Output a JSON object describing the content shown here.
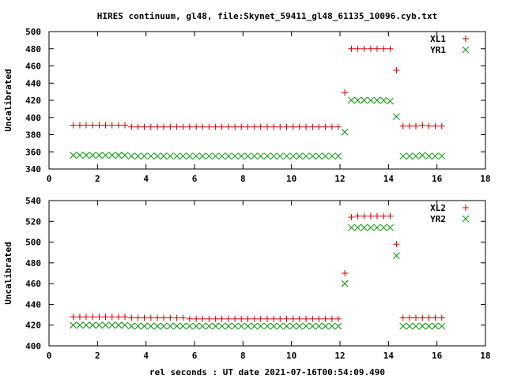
{
  "chart_data": [
    {
      "type": "scatter",
      "title": "HIRES continuum, gl48, file:Skynet_59411_gl48_61135_10096.cyb.txt",
      "ylabel": "Uncalibrated",
      "xlabel": "",
      "xlim": [
        0,
        18
      ],
      "ylim": [
        340,
        500
      ],
      "xticks": [
        0,
        2,
        4,
        6,
        8,
        10,
        12,
        14,
        16,
        18
      ],
      "yticks": [
        340,
        360,
        380,
        400,
        420,
        440,
        460,
        480,
        500
      ],
      "legend_position": "top-right",
      "grid": false,
      "x": [
        1.0,
        1.27,
        1.53,
        1.8,
        2.07,
        2.33,
        2.6,
        2.87,
        3.13,
        3.4,
        3.67,
        3.93,
        4.2,
        4.47,
        4.73,
        5.0,
        5.27,
        5.53,
        5.8,
        6.07,
        6.33,
        6.6,
        6.87,
        7.13,
        7.4,
        7.67,
        7.93,
        8.2,
        8.47,
        8.73,
        9.0,
        9.27,
        9.53,
        9.8,
        10.07,
        10.33,
        10.6,
        10.87,
        11.13,
        11.4,
        11.67,
        11.93,
        12.2,
        12.47,
        12.73,
        13.0,
        13.27,
        13.53,
        13.8,
        14.07,
        14.33,
        14.6,
        14.87,
        15.13,
        15.4,
        15.67,
        15.93,
        16.2
      ],
      "series": [
        {
          "name": "XL1",
          "marker": "plus",
          "color": "#cc0000",
          "values": [
            391,
            391,
            391,
            391,
            391,
            391,
            391,
            391,
            391,
            389,
            389,
            389,
            389,
            389,
            389,
            389,
            389,
            389,
            389,
            389,
            389,
            389,
            389,
            389,
            389,
            389,
            389,
            389,
            389,
            389,
            389,
            389,
            389,
            389,
            389,
            389,
            389,
            389,
            389,
            389,
            389,
            389,
            429,
            480,
            480,
            480,
            480,
            480,
            480,
            480,
            455,
            390,
            390,
            390,
            391,
            390,
            390,
            390
          ]
        },
        {
          "name": "YR1",
          "marker": "x",
          "color": "#009900",
          "values": [
            356,
            356,
            356,
            356,
            356,
            356,
            356,
            356,
            356,
            355,
            355,
            355,
            355,
            355,
            355,
            355,
            355,
            355,
            355,
            355,
            355,
            355,
            355,
            355,
            355,
            355,
            355,
            355,
            355,
            355,
            355,
            355,
            355,
            355,
            355,
            355,
            355,
            355,
            355,
            355,
            355,
            355,
            383,
            420,
            420,
            420,
            420,
            420,
            420,
            419,
            401,
            355,
            355,
            355,
            356,
            355,
            355,
            355
          ]
        }
      ]
    },
    {
      "type": "scatter",
      "title": "",
      "ylabel": "Uncalibrated",
      "xlabel": "rel seconds : UT date 2021-07-16T00:54:09.490",
      "xlim": [
        0,
        18
      ],
      "ylim": [
        400,
        540
      ],
      "xticks": [
        0,
        2,
        4,
        6,
        8,
        10,
        12,
        14,
        16,
        18
      ],
      "yticks": [
        400,
        420,
        440,
        460,
        480,
        500,
        520,
        540
      ],
      "legend_position": "top-right",
      "grid": false,
      "x": [
        1.0,
        1.27,
        1.53,
        1.8,
        2.07,
        2.33,
        2.6,
        2.87,
        3.13,
        3.4,
        3.67,
        3.93,
        4.2,
        4.47,
        4.73,
        5.0,
        5.27,
        5.53,
        5.8,
        6.07,
        6.33,
        6.6,
        6.87,
        7.13,
        7.4,
        7.67,
        7.93,
        8.2,
        8.47,
        8.73,
        9.0,
        9.27,
        9.53,
        9.8,
        10.07,
        10.33,
        10.6,
        10.87,
        11.13,
        11.4,
        11.67,
        11.93,
        12.2,
        12.47,
        12.73,
        13.0,
        13.27,
        13.53,
        13.8,
        14.07,
        14.33,
        14.6,
        14.87,
        15.13,
        15.4,
        15.67,
        15.93,
        16.2
      ],
      "series": [
        {
          "name": "XL2",
          "marker": "plus",
          "color": "#cc0000",
          "values": [
            428,
            428,
            428,
            428,
            428,
            428,
            428,
            428,
            428,
            427,
            427,
            427,
            427,
            427,
            427,
            427,
            427,
            427,
            426,
            426,
            426,
            426,
            426,
            426,
            426,
            426,
            426,
            426,
            426,
            426,
            426,
            426,
            426,
            426,
            426,
            426,
            426,
            426,
            426,
            426,
            426,
            426,
            470,
            524,
            525,
            525,
            525,
            525,
            525,
            525,
            498,
            427,
            427,
            427,
            427,
            427,
            427,
            427
          ]
        },
        {
          "name": "YR2",
          "marker": "x",
          "color": "#009900",
          "values": [
            420,
            420,
            420,
            420,
            420,
            420,
            420,
            420,
            420,
            419,
            419,
            419,
            419,
            419,
            419,
            419,
            419,
            419,
            419,
            419,
            419,
            419,
            419,
            419,
            419,
            419,
            419,
            419,
            419,
            419,
            419,
            419,
            419,
            419,
            419,
            419,
            419,
            419,
            419,
            419,
            419,
            419,
            460,
            514,
            514,
            514,
            514,
            514,
            514,
            514,
            487,
            419,
            419,
            419,
            419,
            419,
            419,
            419
          ]
        }
      ]
    }
  ]
}
